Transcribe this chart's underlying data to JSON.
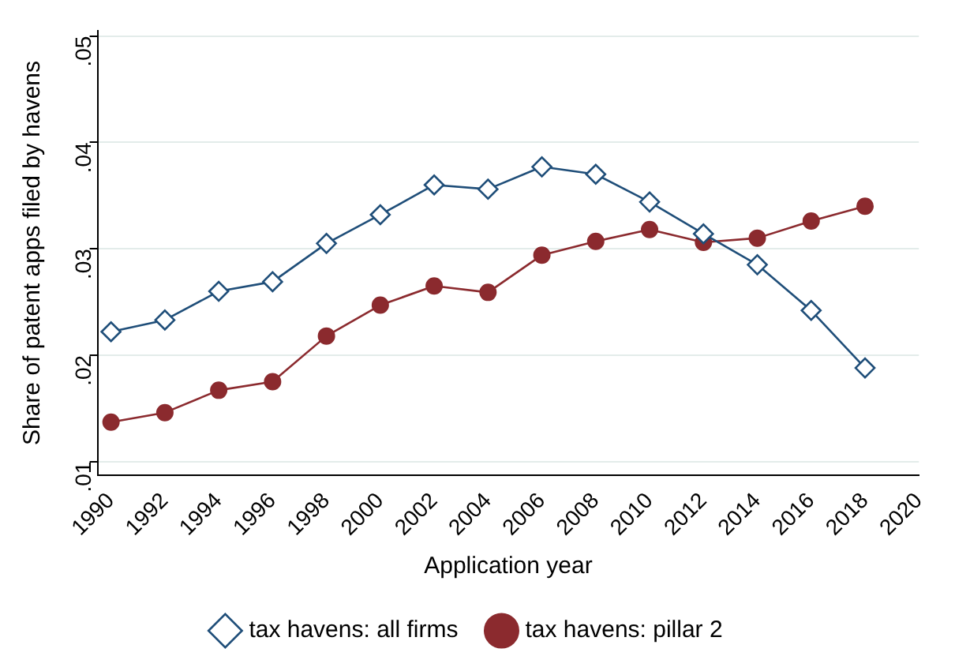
{
  "chart_data": {
    "type": "line",
    "xlabel": "Application year",
    "ylabel": "Share of patent apps filed by havens",
    "x": [
      1990,
      1992,
      1994,
      1996,
      1998,
      2000,
      2002,
      2004,
      2006,
      2008,
      2010,
      2012,
      2014,
      2016,
      2018
    ],
    "series": [
      {
        "name": "tax havens: all firms",
        "color": "#1f4e79",
        "marker": "diamond",
        "values": [
          0.0222,
          0.0233,
          0.026,
          0.0269,
          0.0305,
          0.0332,
          0.036,
          0.0356,
          0.0377,
          0.037,
          0.0344,
          0.0314,
          0.0285,
          0.0242,
          0.0188
        ]
      },
      {
        "name": "tax havens: pillar 2",
        "color": "#8b2a2e",
        "marker": "circle",
        "values": [
          0.0137,
          0.0146,
          0.0167,
          0.0175,
          0.0218,
          0.0247,
          0.0265,
          0.0259,
          0.0294,
          0.0307,
          0.0318,
          0.0306,
          0.031,
          0.0326,
          0.034
        ]
      }
    ],
    "xlim": [
      1989.5,
      2020
    ],
    "xticks": [
      1990,
      1992,
      1994,
      1996,
      1998,
      2000,
      2002,
      2004,
      2006,
      2008,
      2010,
      2012,
      2014,
      2016,
      2018,
      2020
    ],
    "ylim": [
      0.0087,
      0.0505
    ],
    "yticks": [
      {
        "value": 0.01,
        "label": ".01"
      },
      {
        "value": 0.02,
        "label": ".02"
      },
      {
        "value": 0.03,
        "label": ".03"
      },
      {
        "value": 0.04,
        "label": ".04"
      },
      {
        "value": 0.05,
        "label": ".05"
      }
    ],
    "grid": "y",
    "legend": "bottom"
  }
}
